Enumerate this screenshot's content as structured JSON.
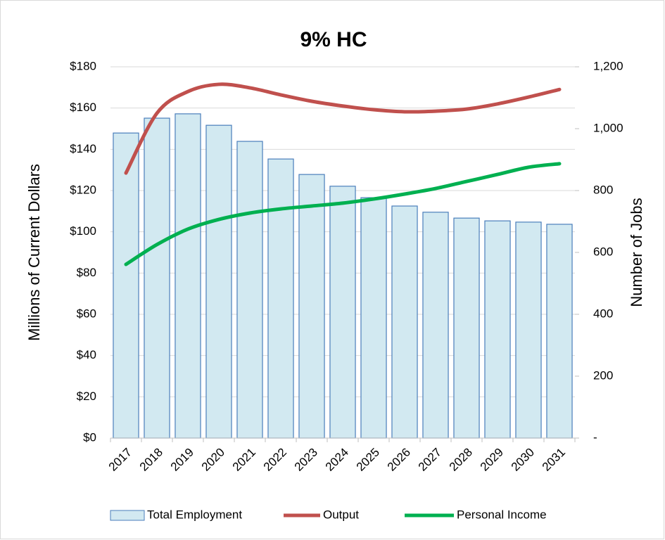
{
  "chart_data": {
    "type": "combo",
    "title": "9% HC",
    "y_label": "Millions of Current Dollars",
    "y2_label": "Number of Jobs",
    "categories": [
      "2017",
      "2018",
      "2019",
      "2020",
      "2021",
      "2022",
      "2023",
      "2024",
      "2025",
      "2026",
      "2027",
      "2028",
      "2029",
      "2030",
      "2031"
    ],
    "series": [
      {
        "name": "Total Employment",
        "type": "bar",
        "axis": "y2",
        "color": "#d2e9f1",
        "edge_color": "#4a7ebb",
        "values": [
          986,
          1034,
          1048,
          1011,
          959,
          902,
          852,
          814,
          777,
          750,
          730,
          711,
          702,
          698,
          691
        ]
      },
      {
        "name": "Output",
        "type": "line",
        "axis": "y",
        "color": "#c0504d",
        "values": [
          128.5,
          157.5,
          168,
          171.5,
          169.8,
          166.4,
          163.3,
          161,
          159.2,
          158.2,
          158.5,
          159.5,
          162,
          165.3,
          169
        ]
      },
      {
        "name": "Personal Income",
        "type": "line",
        "axis": "y",
        "color": "#00b050",
        "values": [
          84.2,
          93.8,
          101.3,
          106,
          109.1,
          111.1,
          112.5,
          113.9,
          115.9,
          118.3,
          121,
          124.4,
          127.8,
          131.3,
          133
        ]
      }
    ],
    "ylim": [
      0,
      180
    ],
    "yticks": [
      {
        "value": 0,
        "label": "$0"
      },
      {
        "value": 20,
        "label": "$20"
      },
      {
        "value": 40,
        "label": "$40"
      },
      {
        "value": 60,
        "label": "$60"
      },
      {
        "value": 80,
        "label": "$80"
      },
      {
        "value": 100,
        "label": "$100"
      },
      {
        "value": 120,
        "label": "$120"
      },
      {
        "value": 140,
        "label": "$140"
      },
      {
        "value": 160,
        "label": "$160"
      },
      {
        "value": 180,
        "label": "$180"
      }
    ],
    "y2lim": [
      0,
      1200
    ],
    "y2ticks": [
      {
        "value": 0,
        "label": "-"
      },
      200,
      400,
      600,
      800,
      {
        "value": 1000,
        "label": "1,000"
      },
      {
        "value": 1200,
        "label": "1,200"
      }
    ],
    "grid": true,
    "legend": "bottom"
  }
}
